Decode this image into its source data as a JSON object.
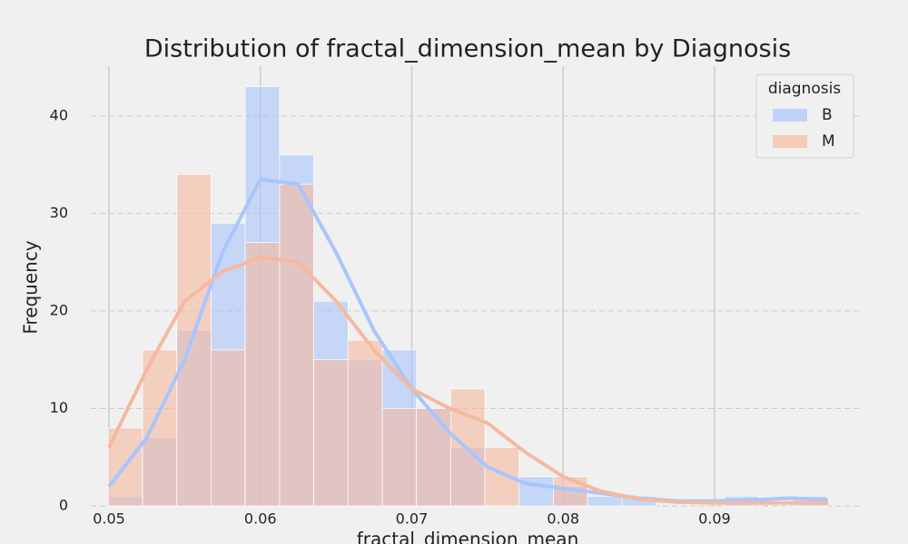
{
  "chart_data": {
    "type": "histogram",
    "title": "Distribution of fractal_dimension_mean by Diagnosis",
    "x_label": "fractal_dimension_mean",
    "y_label": "Frequency",
    "legend_title": "diagnosis",
    "legend": "upper right",
    "grid": true,
    "bins": [
      0.04996,
      0.05222,
      0.05448,
      0.05674,
      0.059,
      0.06127,
      0.06353,
      0.06579,
      0.06805,
      0.07031,
      0.07257,
      0.07483,
      0.07709,
      0.07935,
      0.08161,
      0.08388,
      0.08614,
      0.0884,
      0.09066,
      0.09292,
      0.09518,
      0.09744
    ],
    "kde_x": [
      0.05,
      0.0525,
      0.055,
      0.0575,
      0.06,
      0.0625,
      0.065,
      0.0675,
      0.07,
      0.0725,
      0.075,
      0.0775,
      0.08,
      0.0825,
      0.085,
      0.0875,
      0.09,
      0.0925,
      0.095,
      0.0975
    ],
    "series": [
      {
        "name": "B",
        "color": "#a9c5fc",
        "values": [
          1,
          7,
          18,
          29,
          43,
          36,
          21,
          15,
          16,
          10,
          6,
          0,
          3,
          2,
          1,
          1,
          0,
          0,
          1,
          0,
          1
        ],
        "kde_values": [
          2,
          7,
          15,
          26,
          33.5,
          33,
          26,
          18,
          12,
          7.5,
          4,
          2.3,
          1.8,
          1.3,
          0.8,
          0.5,
          0.5,
          0.6,
          0.8,
          0.6
        ]
      },
      {
        "name": "M",
        "color": "#f5b9a0",
        "values": [
          8,
          16,
          34,
          16,
          27,
          33,
          15,
          17,
          10,
          10,
          12,
          6,
          0,
          3,
          0,
          0,
          0,
          0,
          0,
          0,
          0
        ],
        "kde_values": [
          6,
          14,
          21,
          24,
          25.5,
          25,
          21,
          16,
          12,
          10,
          8.5,
          5.5,
          3,
          1.5,
          0.7,
          0.4,
          0.3,
          0.3,
          0.3,
          0.3
        ]
      }
    ],
    "xlim": [
      0.0488,
      0.0996
    ],
    "ylim": [
      0,
      45.1
    ],
    "xticks": [
      0.05,
      0.06,
      0.07,
      0.08,
      0.09
    ],
    "yticks": [
      0,
      10,
      20,
      30,
      40
    ]
  }
}
